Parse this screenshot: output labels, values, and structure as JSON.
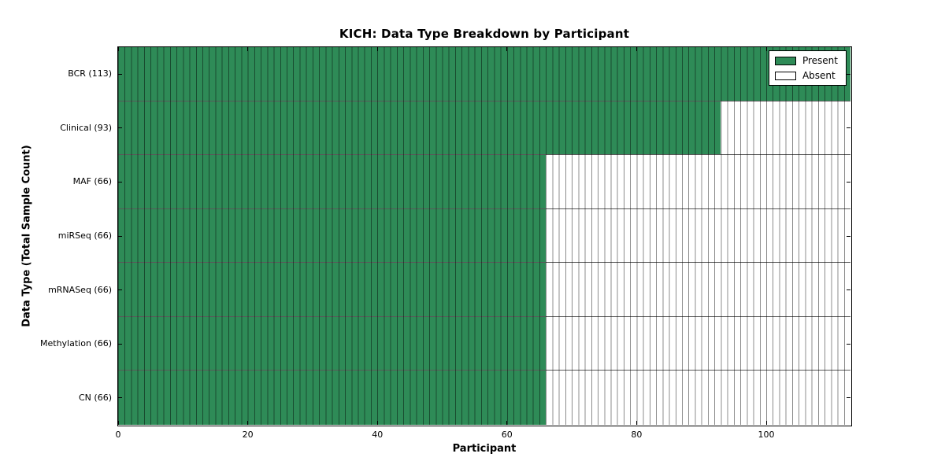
{
  "chart_data": {
    "type": "heatmap",
    "title": "KICH: Data Type Breakdown by Participant",
    "xlabel": "Participant",
    "ylabel": "Data Type (Total Sample Count)",
    "total_participants": 113,
    "xlim": [
      0,
      113
    ],
    "xticks": [
      0,
      20,
      40,
      60,
      80,
      100
    ],
    "categories": [
      "BCR",
      "Clinical",
      "MAF",
      "miRSeq",
      "mRNASeq",
      "Methylation",
      "CN"
    ],
    "rows": [
      {
        "label": "BCR (113)",
        "data_type": "BCR",
        "total_sample_count": 113,
        "present": 113,
        "absent": 0
      },
      {
        "label": "Clinical (93)",
        "data_type": "Clinical",
        "total_sample_count": 93,
        "present": 93,
        "absent": 20
      },
      {
        "label": "MAF (66)",
        "data_type": "MAF",
        "total_sample_count": 66,
        "present": 66,
        "absent": 47
      },
      {
        "label": "miRSeq (66)",
        "data_type": "miRSeq",
        "total_sample_count": 66,
        "present": 66,
        "absent": 47
      },
      {
        "label": "mRNASeq (66)",
        "data_type": "mRNASeq",
        "total_sample_count": 66,
        "present": 66,
        "absent": 47
      },
      {
        "label": "Methylation (66)",
        "data_type": "Methylation",
        "total_sample_count": 66,
        "present": 66,
        "absent": 47
      },
      {
        "label": "CN (66)",
        "data_type": "CN",
        "total_sample_count": 66,
        "present": 66,
        "absent": 47
      }
    ],
    "legend": {
      "position": "upper right",
      "items": [
        {
          "label": "Present",
          "color": "#2e8b57"
        },
        {
          "label": "Absent",
          "color": "#ffffff"
        }
      ]
    },
    "colors": {
      "present": "#2e8b57",
      "absent": "#ffffff",
      "cell_border": "rgba(0,0,0,0.45)",
      "row_separator": "rgba(0,0,0,0.65)",
      "frame": "#000000",
      "background": "#ffffff"
    }
  }
}
